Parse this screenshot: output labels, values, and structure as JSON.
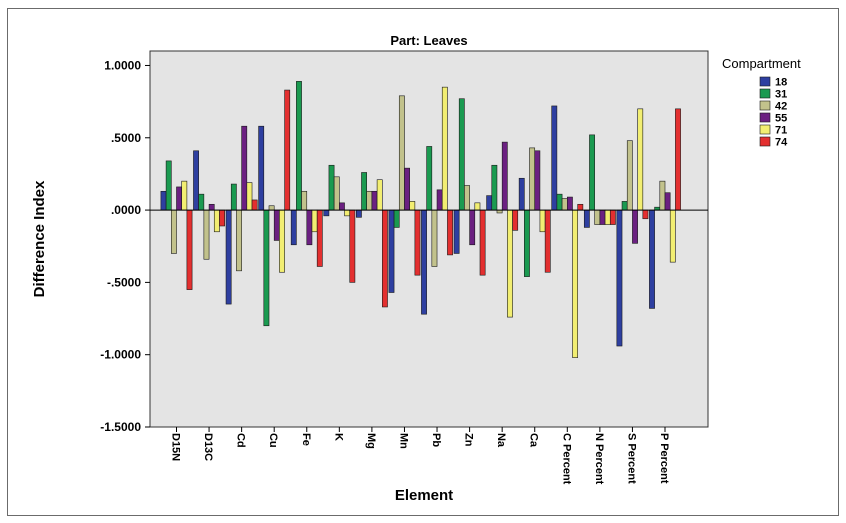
{
  "chart_data": {
    "type": "bar",
    "title": "Part: Leaves",
    "xlabel": "Element",
    "ylabel": "Difference Index",
    "ylim": [
      -1.5,
      1.1
    ],
    "yticks": [
      1.0,
      0.5,
      0.0,
      -0.5,
      -1.0,
      -1.5
    ],
    "ytick_labels": [
      "1.0000",
      ".5000",
      ".0000",
      "-.5000",
      "-1.0000",
      "-1.5000"
    ],
    "grid": false,
    "legend_title": "Compartment",
    "legend_position": "right",
    "categories": [
      "D15N",
      "D13C",
      "Cd",
      "Cu",
      "Fe",
      "K",
      "Mg",
      "Mn",
      "Pb",
      "Zn",
      "Na",
      "Ca",
      "C Percent",
      "N Percent",
      "S Percent",
      "P Percent"
    ],
    "series": [
      {
        "name": "18",
        "color": "#2e3fa0",
        "values": [
          0.13,
          0.41,
          -0.65,
          0.58,
          -0.24,
          -0.04,
          -0.05,
          -0.57,
          -0.72,
          -0.3,
          0.1,
          0.22,
          0.72,
          -0.12,
          -0.94,
          -0.68
        ]
      },
      {
        "name": "31",
        "color": "#1a9a50",
        "values": [
          0.34,
          0.11,
          0.18,
          -0.8,
          0.89,
          0.31,
          0.26,
          -0.12,
          0.44,
          0.77,
          0.31,
          -0.46,
          0.11,
          0.52,
          0.06,
          0.02
        ]
      },
      {
        "name": "42",
        "color": "#c2c28c",
        "values": [
          -0.3,
          -0.34,
          -0.42,
          0.03,
          0.13,
          0.23,
          0.13,
          0.79,
          -0.39,
          0.17,
          -0.02,
          0.43,
          0.08,
          -0.1,
          0.48,
          0.2
        ]
      },
      {
        "name": "55",
        "color": "#6b2081",
        "values": [
          0.16,
          0.04,
          0.58,
          -0.21,
          -0.24,
          0.05,
          0.13,
          0.29,
          0.14,
          -0.24,
          0.47,
          0.41,
          0.09,
          -0.1,
          -0.23,
          0.12
        ]
      },
      {
        "name": "71",
        "color": "#f2ee72",
        "values": [
          0.2,
          -0.15,
          0.19,
          -0.43,
          -0.15,
          -0.04,
          0.21,
          0.06,
          0.85,
          0.05,
          -0.74,
          -0.15,
          -1.02,
          -0.1,
          0.7,
          -0.36
        ]
      },
      {
        "name": "74",
        "color": "#e32f2f",
        "values": [
          -0.55,
          -0.11,
          0.07,
          0.83,
          -0.39,
          -0.5,
          -0.67,
          -0.45,
          -0.31,
          -0.45,
          -0.14,
          -0.43,
          0.04,
          -0.1,
          -0.06,
          0.7
        ]
      }
    ]
  }
}
